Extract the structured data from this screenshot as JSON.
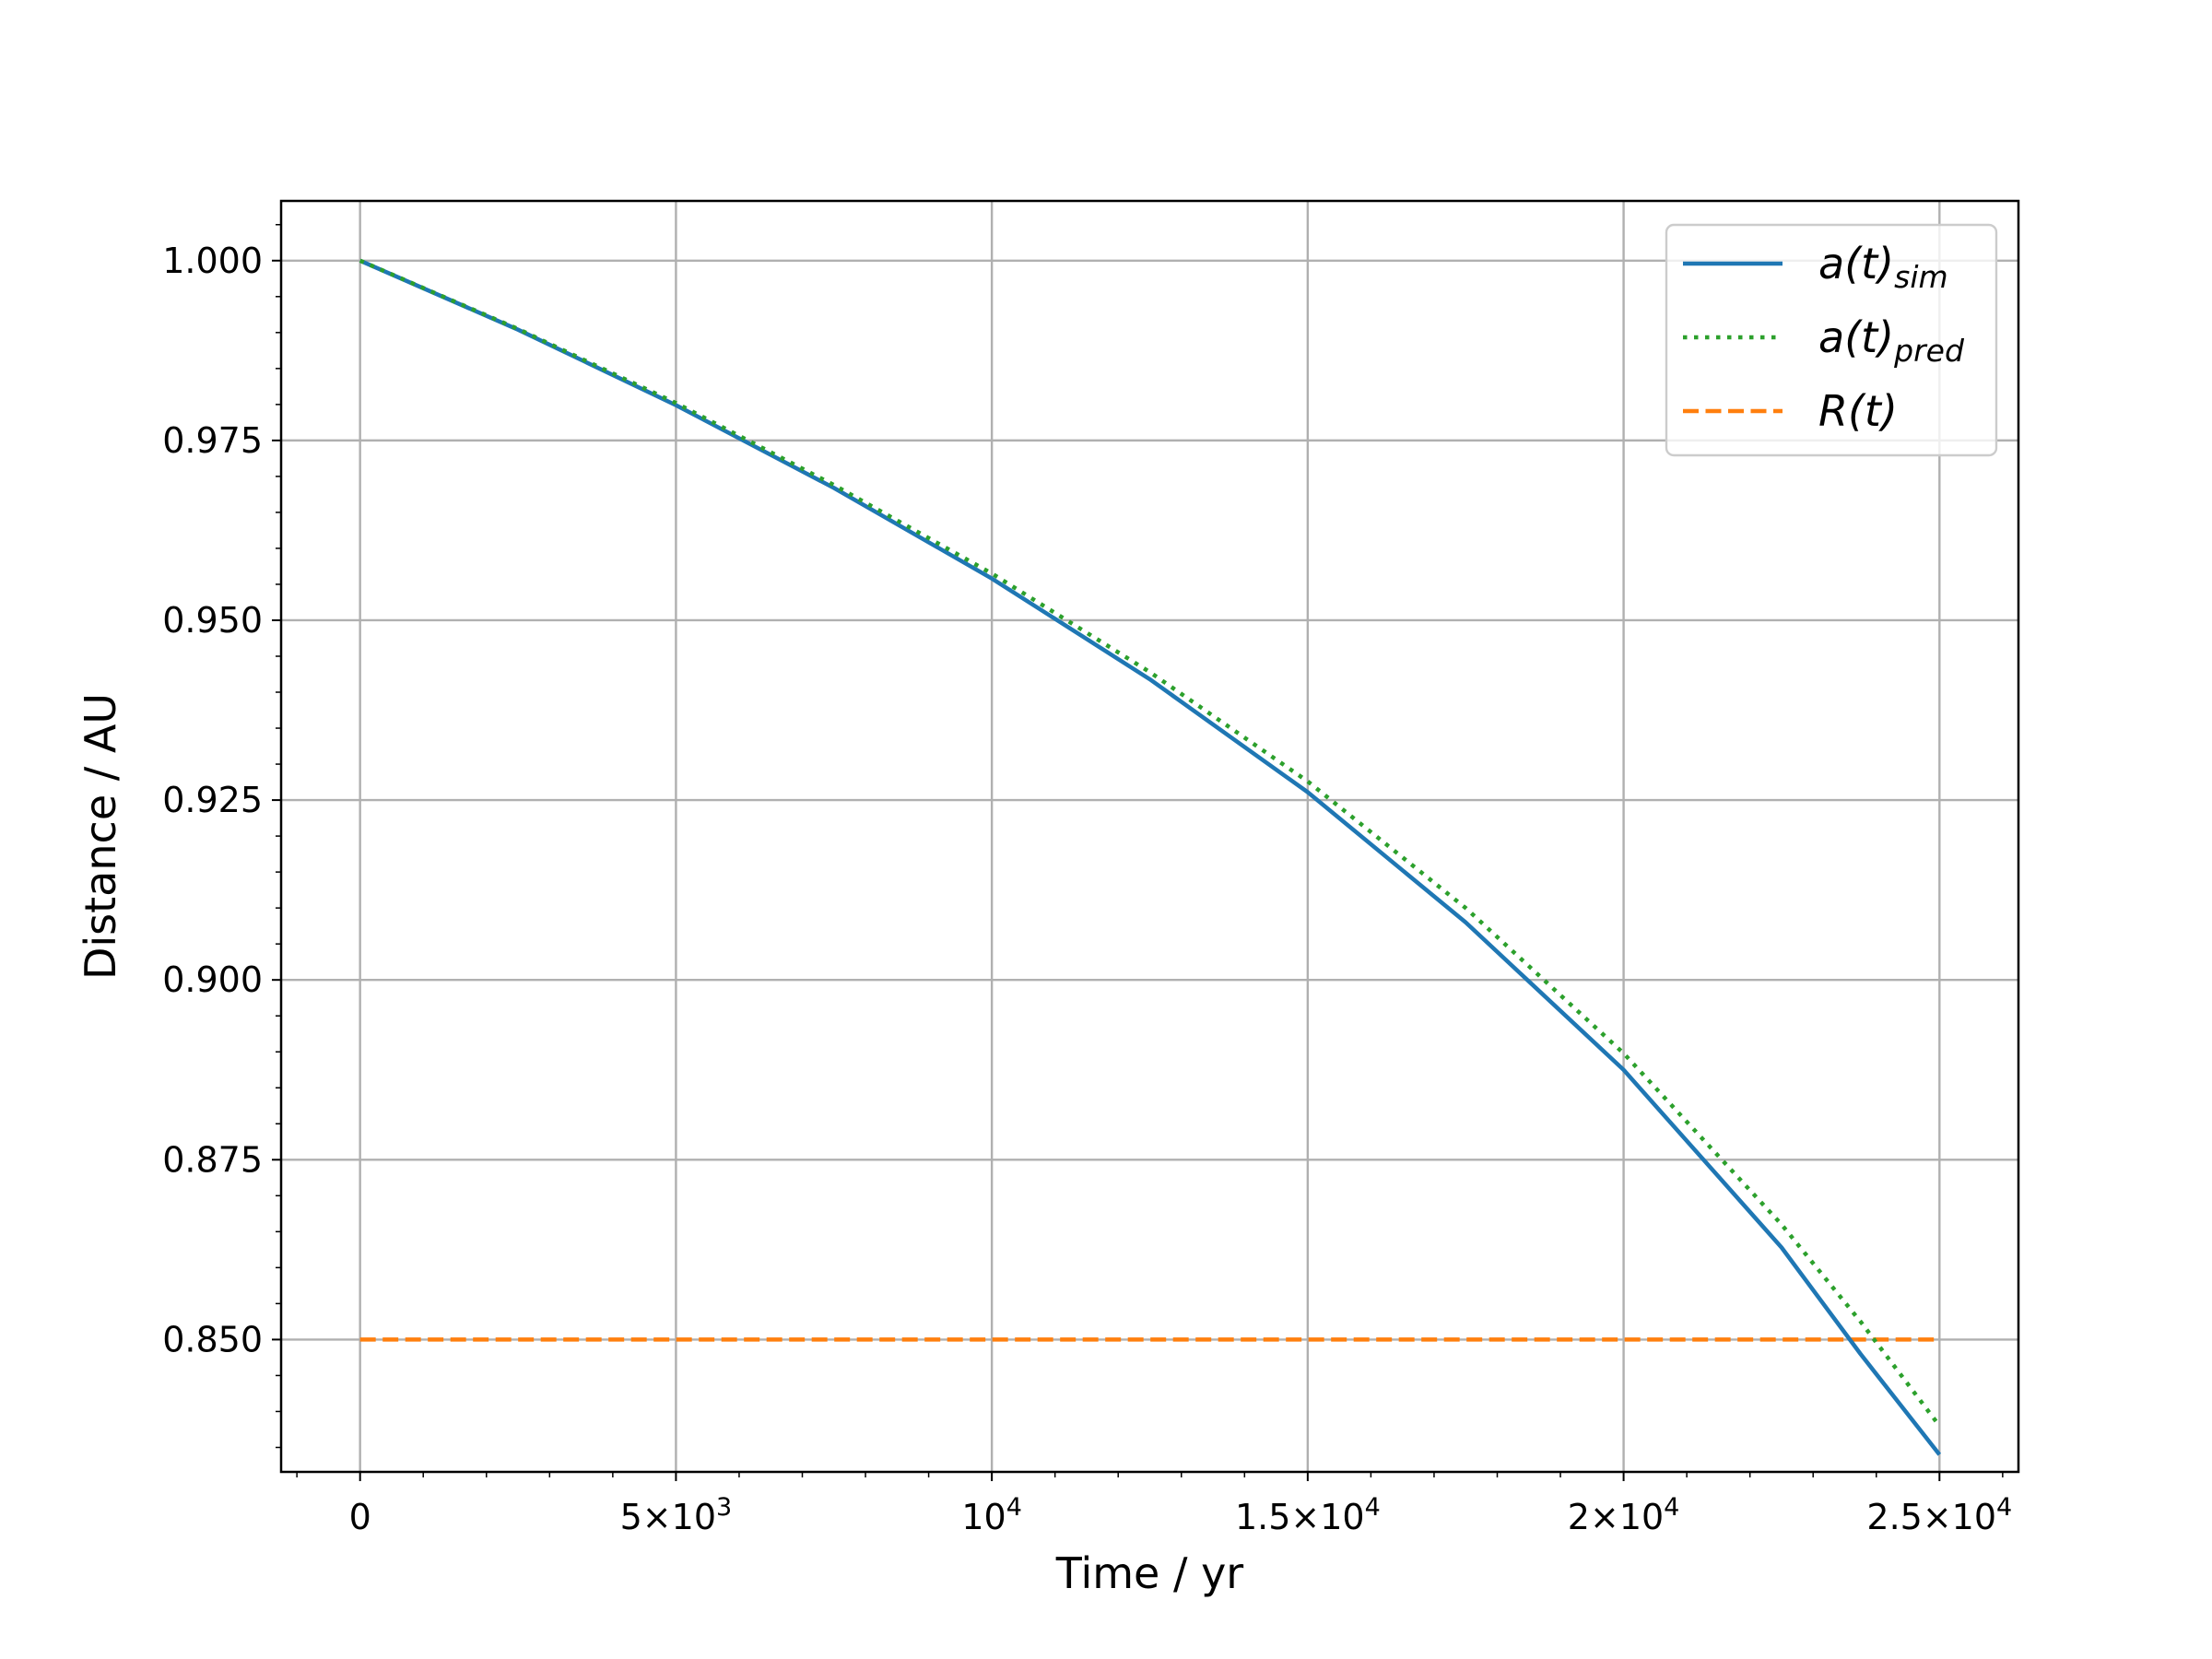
{
  "chart_data": {
    "type": "line",
    "title": "",
    "xlabel": "Time / yr",
    "ylabel": "Distance / AU",
    "xlim": [
      -1250,
      26250
    ],
    "ylim": [
      0.8316,
      1.0083
    ],
    "grid": true,
    "legend_position": "top-right",
    "x_ticks": [
      {
        "value": 0,
        "mant": "0",
        "exp": ""
      },
      {
        "value": 5000,
        "mant": "5×10",
        "exp": "3"
      },
      {
        "value": 10000,
        "mant": "10",
        "exp": "4"
      },
      {
        "value": 15000,
        "mant": "1.5×10",
        "exp": "4"
      },
      {
        "value": 20000,
        "mant": "2×10",
        "exp": "4"
      },
      {
        "value": 25000,
        "mant": "2.5×10",
        "exp": "4"
      }
    ],
    "y_ticks": [
      {
        "value": 0.85,
        "label": "0.850"
      },
      {
        "value": 0.875,
        "label": "0.875"
      },
      {
        "value": 0.9,
        "label": "0.900"
      },
      {
        "value": 0.925,
        "label": "0.925"
      },
      {
        "value": 0.95,
        "label": "0.950"
      },
      {
        "value": 0.975,
        "label": "0.975"
      },
      {
        "value": 1.0,
        "label": "1.000"
      }
    ],
    "series": [
      {
        "name": "a(t)",
        "name_sub": "sim",
        "color": "#1f77b4",
        "style": "solid",
        "x": [
          0,
          2500,
          5000,
          7500,
          10000,
          12500,
          15000,
          17500,
          20000,
          22500,
          23750,
          25000
        ],
        "y": [
          1.0,
          0.9904,
          0.9799,
          0.9684,
          0.9558,
          0.9418,
          0.9261,
          0.908,
          0.8875,
          0.8628,
          0.848,
          0.834
        ]
      },
      {
        "name": "a(t)",
        "name_sub": "pred",
        "color": "#2ca02c",
        "style": "dotted",
        "x": [
          0,
          2500,
          5000,
          7500,
          10000,
          12500,
          15000,
          17500,
          20000,
          22500,
          23750,
          25000
        ],
        "y": [
          1.0,
          0.9905,
          0.9802,
          0.9688,
          0.9565,
          0.9428,
          0.9276,
          0.91,
          0.8898,
          0.866,
          0.8525,
          0.838
        ]
      },
      {
        "name": "R(t)",
        "name_sub": "",
        "color": "#ff7f0e",
        "style": "dashed",
        "x": [
          0,
          25000
        ],
        "y": [
          0.85,
          0.85
        ]
      }
    ]
  }
}
